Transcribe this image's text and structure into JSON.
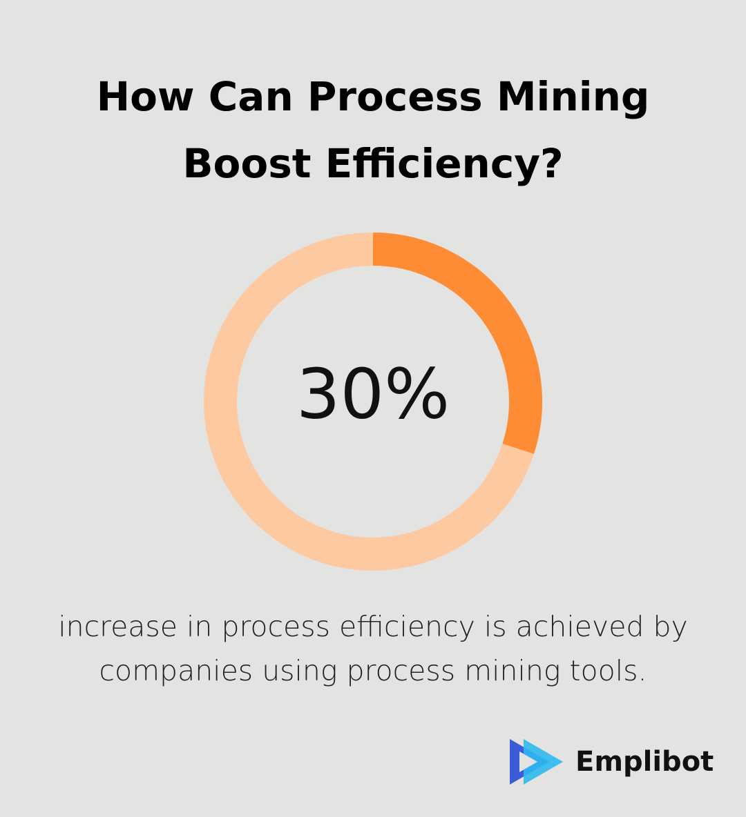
{
  "chart_data": {
    "type": "donut",
    "title": "How Can Process Mining Boost Efficiency?",
    "values": [
      30
    ],
    "value_labels": [
      "30%"
    ],
    "color": "#fe8c34",
    "track_color": "#fdc9a1",
    "caption": "increase in process efficiency is achieved by companies using process mining tools.",
    "brand": "Emplibot"
  }
}
